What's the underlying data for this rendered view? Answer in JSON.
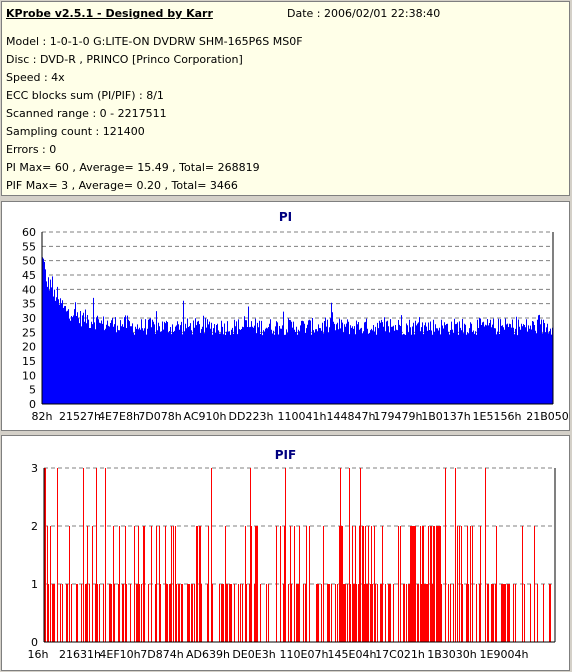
{
  "header": {
    "title": "KProbe v2.5.1 - Designed by Karr",
    "date": "Date : 2006/02/01 22:38:40",
    "lines": [
      "Model : 1-0-1-0 G:LITE-ON DVDRW SHM-165P6S MS0F",
      "Disc : DVD-R , PRINCO [Princo Corporation]",
      "Speed : 4x",
      "ECC blocks sum (PI/PIF) : 8/1",
      "Scanned range : 0 - 2217511",
      "Sampling count : 121400",
      "Errors : 0",
      "PI Max= 60 , Average= 15.49 , Total= 268819",
      "PIF Max= 3 , Average= 0.20 , Total= 3466"
    ]
  },
  "chart_data": [
    {
      "type": "bar",
      "title": "PI",
      "color": "#0000ff",
      "ylim": [
        0,
        60
      ],
      "y_ticks": [
        "0",
        "5",
        "10",
        "15",
        "20",
        "25",
        "30",
        "35",
        "40",
        "45",
        "50",
        "55",
        "60"
      ],
      "x_tick_labels": [
        "82h",
        "21527h",
        "4E7E8h",
        "7D078h",
        "AC910h",
        "DD223h",
        "110041h",
        "144847h",
        "179479h",
        "1B0137h",
        "1E5156h",
        "21B050h"
      ],
      "grid": true,
      "series": [
        {
          "values": [
            50,
            42,
            38,
            35,
            33,
            32,
            31,
            30,
            30,
            29,
            29,
            28,
            28,
            28,
            28,
            28,
            28,
            27,
            27,
            27,
            27,
            27,
            27,
            27,
            27,
            27,
            27,
            27,
            27,
            27,
            27,
            27,
            27,
            27,
            27,
            27,
            27,
            27,
            27,
            27,
            27,
            27,
            27,
            27,
            27,
            27,
            27,
            27,
            27,
            27,
            27,
            27,
            27,
            27,
            27,
            27,
            27,
            27,
            27,
            27,
            27,
            27,
            27,
            27,
            27,
            27,
            27,
            27,
            27,
            27,
            27,
            27,
            27,
            27,
            27,
            27,
            27,
            27,
            27,
            27,
            27,
            27,
            27,
            27,
            27,
            27,
            27,
            27,
            27,
            27,
            27,
            27,
            27,
            27,
            27,
            27,
            27,
            27,
            27,
            27
          ],
          "peaks": [
            37,
            36,
            34,
            32,
            31,
            30
          ]
        }
      ]
    },
    {
      "type": "bar",
      "title": "PIF",
      "color": "#ff0000",
      "ylim": [
        0,
        3
      ],
      "y_ticks": [
        "0",
        "1",
        "2",
        "3"
      ],
      "x_tick_labels": [
        "16h",
        "21631h",
        "4EF10h",
        "7D874h",
        "AD639h",
        "DE0E3h",
        "110E07h",
        "145E04h",
        "17C021h",
        "1B3030h",
        "1E9004h"
      ],
      "grid": true
    }
  ]
}
